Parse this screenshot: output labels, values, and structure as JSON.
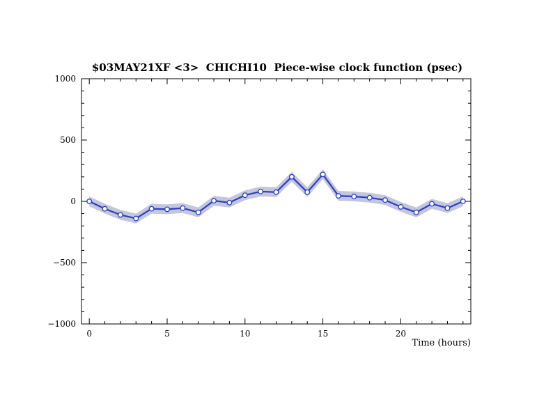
{
  "chart_data": {
    "type": "line",
    "title": "$03MAY21XF <3>  CHICHI10  Piece-wise clock function (psec)",
    "xlabel": "Time (hours)",
    "ylabel": "",
    "xlim": [
      -0.5,
      24.5
    ],
    "ylim": [
      -1000,
      1000
    ],
    "x_ticks": [
      0,
      5,
      10,
      15,
      20
    ],
    "x_tick_labels": [
      "0",
      "5",
      "10",
      "15",
      "20"
    ],
    "y_ticks": [
      1000,
      500,
      0,
      -500,
      -1000
    ],
    "y_tick_labels": [
      "1000",
      "500",
      "0",
      "−500",
      "−1000"
    ],
    "grid": false,
    "series": [
      {
        "x": [
          0,
          1,
          2,
          3,
          4,
          5,
          6,
          7,
          8,
          9,
          10,
          11,
          12,
          13,
          14,
          15,
          16,
          17,
          18,
          19,
          20,
          21,
          22,
          23,
          24
        ],
        "values": [
          0,
          -60,
          -110,
          -140,
          -60,
          -65,
          -55,
          -90,
          5,
          -10,
          50,
          80,
          75,
          200,
          75,
          220,
          45,
          40,
          30,
          10,
          -45,
          -90,
          -20,
          -55,
          0
        ],
        "uncertainty": 40
      }
    ],
    "colors": {
      "line": "#2a3fbf",
      "band": "#c3c6dc",
      "marker_fill": "#ffffff"
    }
  }
}
